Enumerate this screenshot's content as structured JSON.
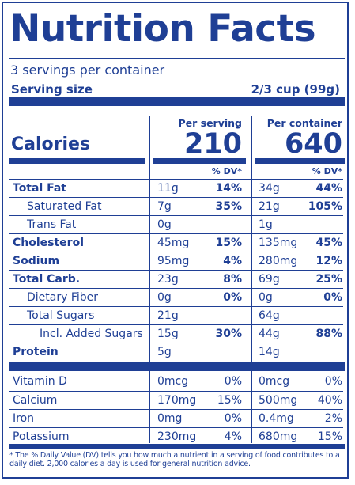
{
  "label": {
    "title": "Nutrition Facts",
    "servings_per_container": "3 servings per container",
    "serving_size_label": "Serving size",
    "serving_size_value": "2/3 cup (99g)",
    "per_serving_label": "Per serving",
    "per_container_label": "Per container",
    "calories_label": "Calories",
    "calories_per_serving": "210",
    "calories_per_container": "640",
    "dv_header": "% DV*",
    "footnote": "* The % Daily Value (DV) tells you how much a nutrient in a serving of food contributes to a daily diet. 2,000 calories a day is used for general nutrition advice."
  },
  "nutrients": [
    {
      "name": "Total Fat",
      "serving_amount": "11g",
      "serving_dv": "14%",
      "container_amount": "34g",
      "container_dv": "44%"
    },
    {
      "name": "Saturated Fat",
      "serving_amount": "7g",
      "serving_dv": "35%",
      "container_amount": "21g",
      "container_dv": "105%"
    },
    {
      "name": "Trans Fat",
      "serving_amount": "0g",
      "serving_dv": "",
      "container_amount": "1g",
      "container_dv": ""
    },
    {
      "name": "Cholesterol",
      "serving_amount": "45mg",
      "serving_dv": "15%",
      "container_amount": "135mg",
      "container_dv": "45%"
    },
    {
      "name": "Sodium",
      "serving_amount": "95mg",
      "serving_dv": "4%",
      "container_amount": "280mg",
      "container_dv": "12%"
    },
    {
      "name": "Total Carb.",
      "serving_amount": "23g",
      "serving_dv": "8%",
      "container_amount": "69g",
      "container_dv": "25%"
    },
    {
      "name": "Dietary Fiber",
      "serving_amount": "0g",
      "serving_dv": "0%",
      "container_amount": "0g",
      "container_dv": "0%"
    },
    {
      "name": "Total Sugars",
      "serving_amount": "21g",
      "serving_dv": "",
      "container_amount": "64g",
      "container_dv": ""
    },
    {
      "name": "Incl. Added Sugars",
      "serving_amount": "15g",
      "serving_dv": "30%",
      "container_amount": "44g",
      "container_dv": "88%"
    },
    {
      "name": "Protein",
      "serving_amount": "5g",
      "serving_dv": "",
      "container_amount": "14g",
      "container_dv": ""
    }
  ],
  "micronutrients": [
    {
      "name": "Vitamin D",
      "serving_amount": "0mcg",
      "serving_dv": "0%",
      "container_amount": "0mcg",
      "container_dv": "0%"
    },
    {
      "name": "Calcium",
      "serving_amount": "170mg",
      "serving_dv": "15%",
      "container_amount": "500mg",
      "container_dv": "40%"
    },
    {
      "name": "Iron",
      "serving_amount": "0mg",
      "serving_dv": "0%",
      "container_amount": "0.4mg",
      "container_dv": "2%"
    },
    {
      "name": "Potassium",
      "serving_amount": "230mg",
      "serving_dv": "4%",
      "container_amount": "680mg",
      "container_dv": "15%"
    }
  ],
  "colors": {
    "ink": "#1f3f95",
    "background": "#ffffff"
  }
}
